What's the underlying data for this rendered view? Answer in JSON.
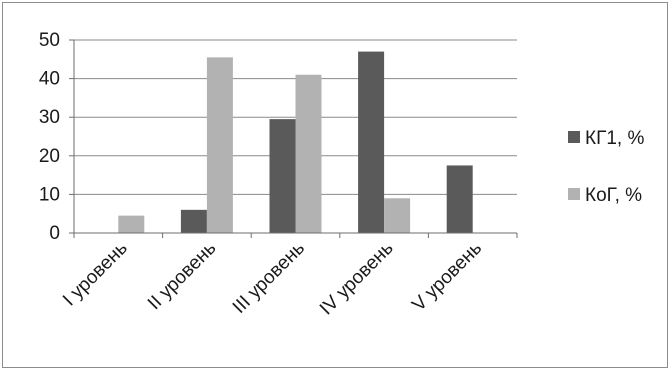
{
  "chart_data": {
    "type": "bar",
    "categories": [
      "I уровень",
      "II уровень",
      "III уровень",
      "IV уровень",
      "V уровень"
    ],
    "series": [
      {
        "name": "КГ1, %",
        "values": [
          0,
          6,
          29.5,
          47,
          17.5
        ],
        "color": "#5a5a5a"
      },
      {
        "name": "КоГ, %",
        "values": [
          4.5,
          45.5,
          41,
          9,
          0
        ],
        "color": "#b2b2b2"
      }
    ],
    "yticks": [
      "0",
      "10",
      "20",
      "30",
      "40",
      "50"
    ],
    "ylim": [
      0,
      50
    ],
    "grid": true,
    "legend_position": "right"
  }
}
